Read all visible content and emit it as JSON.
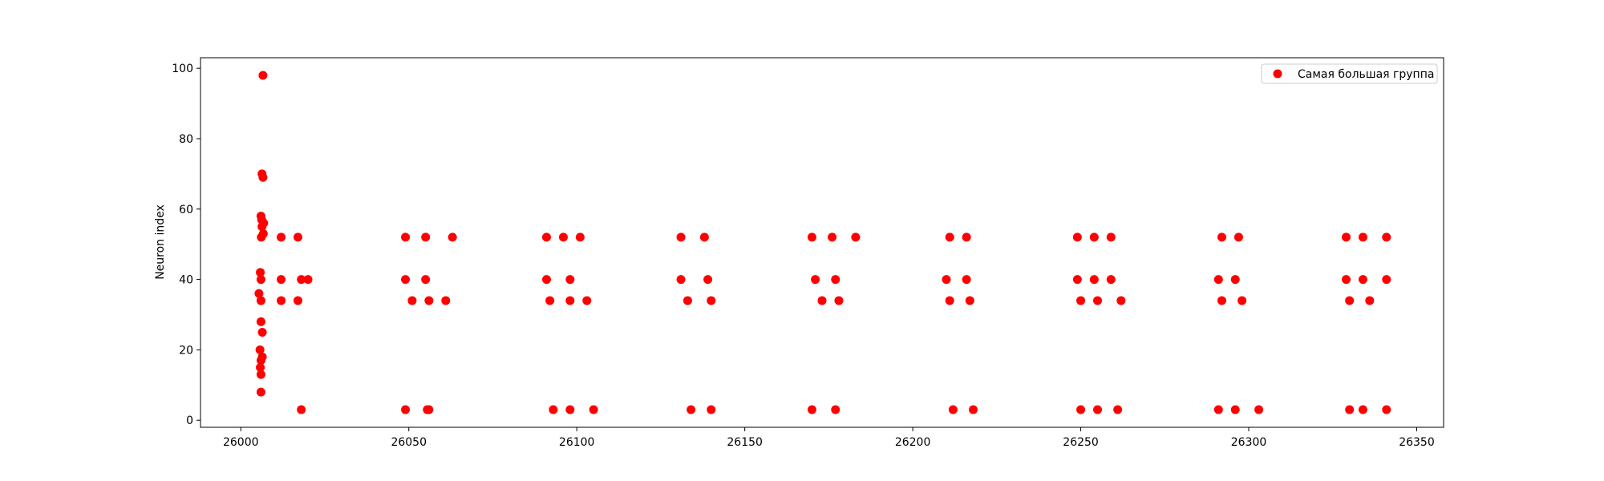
{
  "colors": {
    "point": "#ff0000",
    "axis": "#000000",
    "legend_border": "#cccccc",
    "background": "#ffffff"
  },
  "chart_data": {
    "type": "scatter",
    "title": "",
    "xlabel": "",
    "ylabel": "Neuron index",
    "xlim": [
      25988,
      26358
    ],
    "ylim": [
      -2,
      103
    ],
    "xticks": [
      26000,
      26050,
      26100,
      26150,
      26200,
      26250,
      26300,
      26350
    ],
    "yticks": [
      0,
      20,
      40,
      60,
      80,
      100
    ],
    "grid": false,
    "legend": {
      "position": "top-right",
      "entries": [
        "Самая большая группа"
      ]
    },
    "series": [
      {
        "name": "Самая большая группа",
        "color": "#ff0000",
        "x": [
          26006.6,
          26006.3,
          26006.6,
          26006.0,
          26006.2,
          26006.8,
          26006.3,
          26006.7,
          26006.1,
          26005.8,
          26006.0,
          26005.4,
          26006.0,
          26006.0,
          26006.4,
          26005.7,
          26006.4,
          26006.0,
          26005.8,
          26006.0,
          26006.0,
          26012.0,
          26012.0,
          26012.0,
          26017.0,
          26017.0,
          26018.0,
          26018.0,
          26020.0,
          26049.0,
          26049.0,
          26049.0,
          26051.0,
          26055.0,
          26055.0,
          26055.5,
          26056.0,
          26056.0,
          26061.0,
          26063.0,
          26091.0,
          26091.0,
          26092.0,
          26093.0,
          26096.0,
          26098.0,
          26098.0,
          26098.0,
          26101.0,
          26103.0,
          26105.0,
          26131.0,
          26131.0,
          26133.0,
          26134.0,
          26138.0,
          26139.0,
          26140.0,
          26140.0,
          26170.0,
          26170.0,
          26171.0,
          26173.0,
          26176.0,
          26177.0,
          26177.0,
          26178.0,
          26183.0,
          26210.0,
          26211.0,
          26211.0,
          26212.0,
          26216.0,
          26216.0,
          26217.0,
          26218.0,
          26249.0,
          26249.0,
          26250.0,
          26250.0,
          26254.0,
          26254.0,
          26255.0,
          26255.0,
          26259.0,
          26259.0,
          26261.0,
          26262.0,
          26291.0,
          26291.0,
          26292.0,
          26292.0,
          26296.0,
          26296.0,
          26297.0,
          26298.0,
          26303.0,
          26329.0,
          26329.0,
          26330.0,
          26330.0,
          26334.0,
          26334.0,
          26334.0,
          26336.0,
          26341.0,
          26341.0,
          26341.0
        ],
        "y": [
          98,
          70,
          69,
          58,
          57,
          56,
          55,
          53,
          52,
          42,
          40,
          36,
          34,
          28,
          25,
          20,
          18,
          17,
          15,
          13,
          8,
          52,
          40,
          34,
          52,
          34,
          40,
          3,
          40,
          52,
          40,
          3,
          34,
          52,
          40,
          3,
          34,
          3,
          34,
          52,
          52,
          40,
          34,
          3,
          52,
          40,
          34,
          3,
          52,
          34,
          3,
          52,
          40,
          34,
          3,
          52,
          40,
          34,
          3,
          52,
          3,
          40,
          34,
          52,
          40,
          3,
          34,
          52,
          40,
          52,
          34,
          3,
          40,
          52,
          34,
          3,
          52,
          40,
          34,
          3,
          52,
          40,
          34,
          3,
          52,
          40,
          3,
          34,
          40,
          3,
          52,
          34,
          40,
          3,
          52,
          34,
          3,
          52,
          40,
          34,
          3,
          52,
          40,
          3,
          34,
          52,
          40,
          3
        ]
      }
    ]
  }
}
